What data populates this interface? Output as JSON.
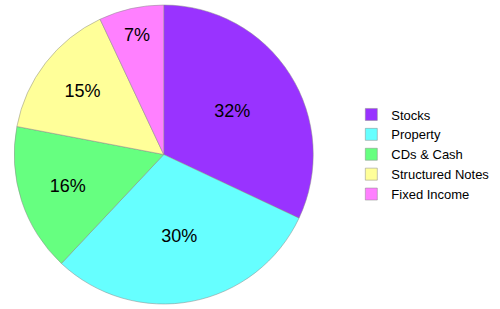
{
  "chart_data": {
    "type": "pie",
    "categories": [
      "Stocks",
      "Property",
      "CDs & Cash",
      "Structured Notes",
      "Fixed Income"
    ],
    "values": [
      32,
      30,
      16,
      15,
      7
    ],
    "value_labels": [
      "32%",
      "30%",
      "16%",
      "15%",
      "7%"
    ],
    "colors": [
      "#9933ff",
      "#66ffff",
      "#66ff80",
      "#ffff99",
      "#ff80ff"
    ],
    "data_labels": true,
    "legend": "right"
  }
}
